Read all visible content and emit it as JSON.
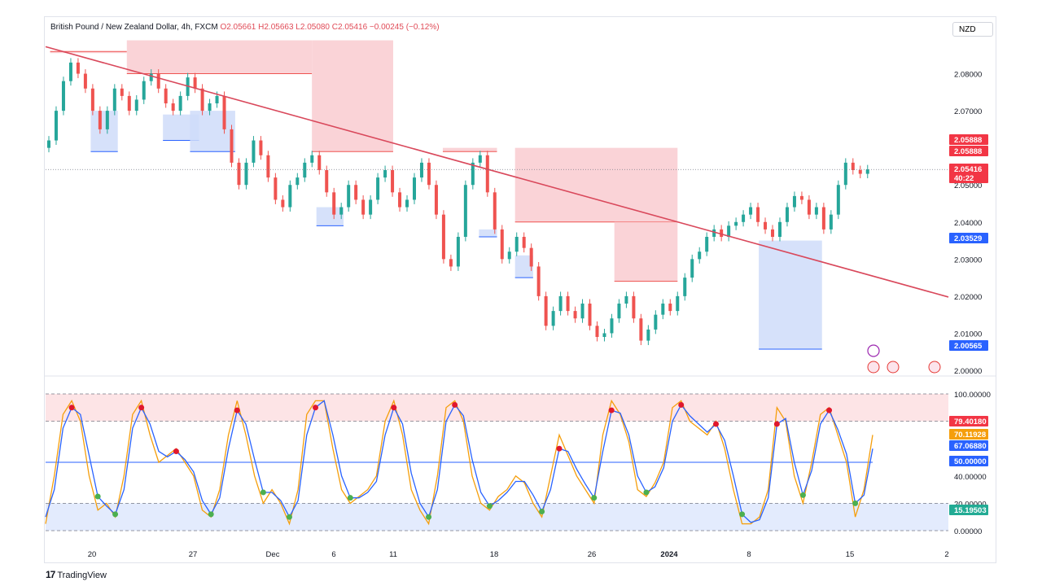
{
  "header": {
    "title": "British Pound / New Zealand Dollar, 4h, FXCM",
    "ohlc": "O2.05661  H2.05663  L2.05080  C2.05416  −0.00245 (−0.12%)",
    "currency": "NZD"
  },
  "brand": {
    "logo": "17",
    "name": "TradingView"
  },
  "colors": {
    "up": "#26a69a",
    "down": "#ef5350",
    "trendline": "#d9485b",
    "supply_zone": "#f9cbd0",
    "demand_zone": "#cfdcf9",
    "stoch_k": "#f59e0b",
    "stoch_d": "#2962ff"
  },
  "chart_data": {
    "type": "candlestick",
    "price_axis": {
      "min": 2.0,
      "max": 2.09,
      "ticks": [
        "2.08000",
        "2.07000",
        "2.06000",
        "2.05000",
        "2.04000",
        "2.03000",
        "2.02000",
        "2.01000",
        "2.00000"
      ]
    },
    "time_axis": [
      "20",
      "27",
      "Dec",
      "6",
      "11",
      "18",
      "26",
      "2024",
      "8",
      "15",
      "2"
    ],
    "price_tags": [
      {
        "label": "2.05888",
        "value": 2.05888,
        "style": "red"
      },
      {
        "label": "2.05888",
        "value": 2.05888,
        "style": "red"
      },
      {
        "label": "2.05416",
        "value": 2.05416,
        "style": "red",
        "countdown": "40:22"
      },
      {
        "label": "2.03529",
        "value": 2.03529,
        "style": "blue"
      },
      {
        "label": "2.00565",
        "value": 2.00565,
        "style": "blue"
      }
    ],
    "trendline": {
      "from": 2.0864,
      "to": 2.0246
    },
    "closes": [
      2.062,
      2.07,
      2.078,
      2.083,
      2.08,
      2.076,
      2.07,
      2.065,
      2.07,
      2.076,
      2.074,
      2.07,
      2.073,
      2.078,
      2.08,
      2.076,
      2.072,
      2.07,
      2.074,
      2.079,
      2.076,
      2.07,
      2.072,
      2.074,
      2.065,
      2.056,
      2.05,
      2.056,
      2.062,
      2.058,
      2.052,
      2.046,
      2.044,
      2.05,
      2.052,
      2.056,
      2.058,
      2.054,
      2.048,
      2.042,
      2.044,
      2.05,
      2.046,
      2.042,
      2.046,
      2.052,
      2.054,
      2.048,
      2.044,
      2.046,
      2.052,
      2.056,
      2.05,
      2.042,
      2.03,
      2.028,
      2.036,
      2.05,
      2.056,
      2.058,
      2.048,
      2.038,
      2.03,
      2.032,
      2.036,
      2.033,
      2.028,
      2.02,
      2.012,
      2.016,
      2.02,
      2.016,
      2.014,
      2.018,
      2.012,
      2.009,
      2.01,
      2.014,
      2.018,
      2.02,
      2.014,
      2.008,
      2.011,
      2.015,
      2.018,
      2.016,
      2.02,
      2.025,
      2.03,
      2.032,
      2.036,
      2.038,
      2.036,
      2.039,
      2.04,
      2.042,
      2.044,
      2.04,
      2.038,
      2.036,
      2.04,
      2.044,
      2.047,
      2.046,
      2.042,
      2.044,
      2.038,
      2.042,
      2.05,
      2.056,
      2.054,
      2.053,
      2.0542
    ],
    "supply_zones": [
      {
        "x0": 0.005,
        "x1": 0.09,
        "top": 2.086,
        "bottom": 2.086
      },
      {
        "x0": 0.09,
        "x1": 0.295,
        "top": 2.089,
        "bottom": 2.08
      },
      {
        "x0": 0.295,
        "x1": 0.385,
        "top": 2.089,
        "bottom": 2.059
      },
      {
        "x0": 0.44,
        "x1": 0.5,
        "top": 2.06,
        "bottom": 2.059
      },
      {
        "x0": 0.52,
        "x1": 0.7,
        "top": 2.06,
        "bottom": 2.04
      },
      {
        "x0": 0.63,
        "x1": 0.7,
        "top": 2.04,
        "bottom": 2.024
      }
    ],
    "demand_zones": [
      {
        "x0": 0.05,
        "x1": 0.08,
        "top": 2.07,
        "bottom": 2.059
      },
      {
        "x0": 0.13,
        "x1": 0.17,
        "top": 2.069,
        "bottom": 2.062
      },
      {
        "x0": 0.16,
        "x1": 0.21,
        "top": 2.07,
        "bottom": 2.059
      },
      {
        "x0": 0.3,
        "x1": 0.33,
        "top": 2.044,
        "bottom": 2.039
      },
      {
        "x0": 0.48,
        "x1": 0.5,
        "top": 2.038,
        "bottom": 2.036
      },
      {
        "x0": 0.52,
        "x1": 0.54,
        "top": 2.031,
        "bottom": 2.025
      },
      {
        "x0": 0.79,
        "x1": 0.86,
        "top": 2.035,
        "bottom": 2.0057
      }
    ],
    "stochastic": {
      "ticks": [
        "100.00000",
        "40.00000",
        "20.00000",
        "0.00000"
      ],
      "overbought": 80,
      "oversold": 20,
      "midline": 50,
      "tags": [
        {
          "label": "79.40180",
          "value": 79.4,
          "style": "red"
        },
        {
          "label": "70.11928",
          "value": 70.12,
          "style": "orange"
        },
        {
          "label": "67.06880",
          "value": 67.07,
          "style": "blue"
        },
        {
          "label": "50.00000",
          "value": 50.0,
          "style": "blue"
        },
        {
          "label": "15.19503",
          "value": 15.2,
          "style": "green"
        }
      ],
      "k": [
        5,
        40,
        85,
        95,
        80,
        40,
        15,
        20,
        10,
        40,
        85,
        95,
        70,
        50,
        55,
        60,
        50,
        40,
        15,
        10,
        30,
        70,
        95,
        70,
        40,
        20,
        30,
        20,
        5,
        30,
        85,
        95,
        95,
        60,
        30,
        20,
        25,
        30,
        40,
        80,
        95,
        70,
        30,
        15,
        5,
        40,
        90,
        95,
        80,
        40,
        20,
        15,
        25,
        30,
        40,
        35,
        20,
        10,
        40,
        70,
        55,
        40,
        30,
        20,
        70,
        95,
        85,
        65,
        30,
        25,
        35,
        50,
        90,
        95,
        80,
        75,
        70,
        80,
        60,
        30,
        5,
        5,
        10,
        30,
        90,
        80,
        40,
        20,
        50,
        85,
        90,
        70,
        50,
        10,
        30,
        70
      ],
      "d": [
        10,
        30,
        75,
        90,
        85,
        55,
        25,
        18,
        12,
        30,
        75,
        90,
        78,
        58,
        54,
        58,
        52,
        43,
        22,
        12,
        24,
        60,
        88,
        78,
        52,
        28,
        28,
        22,
        10,
        22,
        70,
        90,
        95,
        70,
        40,
        24,
        24,
        28,
        36,
        70,
        90,
        78,
        42,
        20,
        10,
        30,
        80,
        92,
        84,
        52,
        28,
        18,
        22,
        28,
        36,
        36,
        26,
        14,
        30,
        60,
        58,
        45,
        34,
        24,
        58,
        88,
        86,
        70,
        40,
        28,
        32,
        46,
        80,
        92,
        84,
        78,
        72,
        78,
        66,
        40,
        12,
        6,
        8,
        24,
        78,
        82,
        50,
        26,
        44,
        78,
        88,
        74,
        56,
        20,
        26,
        60
      ]
    }
  }
}
